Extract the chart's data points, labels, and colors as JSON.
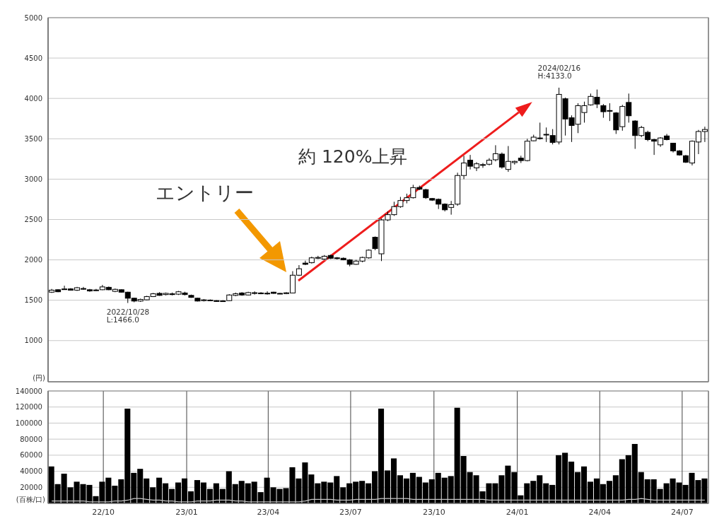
{
  "chart_data": [
    {
      "type": "candlestick",
      "ylabel": "(円)",
      "color": "#000000",
      "x": [
        "2022-08-05",
        "2022-08-12",
        "2022-08-19",
        "2022-08-26",
        "2022-09-02",
        "2022-09-09",
        "2022-09-16",
        "2022-09-23",
        "2022-09-30",
        "2022-10-07",
        "2022-10-14",
        "2022-10-21",
        "2022-10-28",
        "2022-11-04",
        "2022-11-11",
        "2022-11-18",
        "2022-11-25",
        "2022-12-02",
        "2022-12-09",
        "2022-12-16",
        "2022-12-23",
        "2022-12-30",
        "2023-01-06",
        "2023-01-13",
        "2023-01-20",
        "2023-01-27",
        "2023-02-03",
        "2023-02-10",
        "2023-02-17",
        "2023-02-24",
        "2023-03-03",
        "2023-03-10",
        "2023-03-17",
        "2023-03-24",
        "2023-03-31",
        "2023-04-07",
        "2023-04-14",
        "2023-04-21",
        "2023-04-28",
        "2023-05-05",
        "2023-05-12",
        "2023-05-19",
        "2023-05-26",
        "2023-06-02",
        "2023-06-09",
        "2023-06-16",
        "2023-06-23",
        "2023-06-30",
        "2023-07-07",
        "2023-07-14",
        "2023-07-21",
        "2023-07-28",
        "2023-08-04",
        "2023-08-11",
        "2023-08-18",
        "2023-08-25",
        "2023-09-01",
        "2023-09-08",
        "2023-09-15",
        "2023-09-22",
        "2023-09-29",
        "2023-10-06",
        "2023-10-13",
        "2023-10-20",
        "2023-10-27",
        "2023-11-03",
        "2023-11-10",
        "2023-11-17",
        "2023-11-24",
        "2023-12-01",
        "2023-12-08",
        "2023-12-15",
        "2023-12-22",
        "2023-12-29",
        "2024-01-05",
        "2024-01-12",
        "2024-01-19",
        "2024-01-26",
        "2024-02-02",
        "2024-02-09",
        "2024-02-16",
        "2024-02-23",
        "2024-03-01",
        "2024-03-08",
        "2024-03-15",
        "2024-03-22",
        "2024-03-29",
        "2024-04-05",
        "2024-04-12",
        "2024-04-19",
        "2024-04-26",
        "2024-05-03",
        "2024-05-10",
        "2024-05-17",
        "2024-05-24",
        "2024-05-31",
        "2024-06-07",
        "2024-06-14",
        "2024-06-21",
        "2024-06-28",
        "2024-07-05",
        "2024-07-12",
        "2024-07-19",
        "2024-07-26"
      ],
      "ohlc": [
        [
          1600,
          1640,
          1590,
          1625
        ],
        [
          1630,
          1635,
          1600,
          1605
        ],
        [
          1635,
          1680,
          1630,
          1640
        ],
        [
          1640,
          1650,
          1620,
          1625
        ],
        [
          1625,
          1665,
          1615,
          1655
        ],
        [
          1640,
          1665,
          1630,
          1645
        ],
        [
          1630,
          1640,
          1605,
          1615
        ],
        [
          1622,
          1640,
          1615,
          1627
        ],
        [
          1630,
          1690,
          1625,
          1665
        ],
        [
          1660,
          1670,
          1625,
          1630
        ],
        [
          1610,
          1645,
          1600,
          1635
        ],
        [
          1630,
          1635,
          1595,
          1600
        ],
        [
          1600,
          1605,
          1466,
          1525
        ],
        [
          1525,
          1530,
          1475,
          1490
        ],
        [
          1490,
          1520,
          1480,
          1510
        ],
        [
          1505,
          1555,
          1500,
          1545
        ],
        [
          1545,
          1590,
          1540,
          1580
        ],
        [
          1585,
          1600,
          1555,
          1560
        ],
        [
          1570,
          1595,
          1560,
          1585
        ],
        [
          1580,
          1595,
          1560,
          1570
        ],
        [
          1575,
          1615,
          1565,
          1605
        ],
        [
          1590,
          1605,
          1560,
          1570
        ],
        [
          1560,
          1570,
          1530,
          1535
        ],
        [
          1525,
          1530,
          1485,
          1490
        ],
        [
          1495,
          1515,
          1485,
          1505
        ],
        [
          1498,
          1510,
          1490,
          1502
        ],
        [
          1495,
          1500,
          1480,
          1485
        ],
        [
          1488,
          1500,
          1480,
          1492
        ],
        [
          1495,
          1575,
          1490,
          1565
        ],
        [
          1560,
          1595,
          1550,
          1580
        ],
        [
          1590,
          1600,
          1555,
          1565
        ],
        [
          1565,
          1605,
          1560,
          1595
        ],
        [
          1590,
          1610,
          1570,
          1593
        ],
        [
          1590,
          1600,
          1575,
          1580
        ],
        [
          1583,
          1610,
          1570,
          1587
        ],
        [
          1600,
          1605,
          1580,
          1585
        ],
        [
          1585,
          1590,
          1575,
          1580
        ],
        [
          1582,
          1600,
          1575,
          1592
        ],
        [
          1590,
          1860,
          1585,
          1810
        ],
        [
          1810,
          1935,
          1800,
          1890
        ],
        [
          1960,
          1990,
          1935,
          1945
        ],
        [
          1965,
          2040,
          1955,
          2025
        ],
        [
          2020,
          2050,
          2010,
          2030
        ],
        [
          2010,
          2060,
          2000,
          2045
        ],
        [
          2055,
          2065,
          2010,
          2020
        ],
        [
          2025,
          2035,
          2005,
          2020
        ],
        [
          2020,
          2030,
          1995,
          2000
        ],
        [
          2000,
          2010,
          1920,
          1945
        ],
        [
          1945,
          2000,
          1940,
          1985
        ],
        [
          1985,
          2040,
          1970,
          2030
        ],
        [
          2025,
          2130,
          2015,
          2120
        ],
        [
          2280,
          2290,
          2120,
          2140
        ],
        [
          2075,
          2510,
          1985,
          2495
        ],
        [
          2495,
          2600,
          2480,
          2560
        ],
        [
          2560,
          2720,
          2545,
          2660
        ],
        [
          2660,
          2780,
          2645,
          2735
        ],
        [
          2735,
          2820,
          2700,
          2770
        ],
        [
          2770,
          2930,
          2760,
          2895
        ],
        [
          2897,
          2920,
          2865,
          2875
        ],
        [
          2870,
          2880,
          2755,
          2770
        ],
        [
          2760,
          2765,
          2730,
          2740
        ],
        [
          2750,
          2760,
          2630,
          2690
        ],
        [
          2690,
          2700,
          2600,
          2620
        ],
        [
          2650,
          2730,
          2560,
          2685
        ],
        [
          2690,
          3080,
          2670,
          3045
        ],
        [
          3045,
          3290,
          3000,
          3200
        ],
        [
          3235,
          3300,
          3120,
          3160
        ],
        [
          3140,
          3210,
          3100,
          3190
        ],
        [
          3175,
          3200,
          3140,
          3180
        ],
        [
          3185,
          3260,
          3170,
          3235
        ],
        [
          3240,
          3420,
          3220,
          3315
        ],
        [
          3310,
          3330,
          3130,
          3150
        ],
        [
          3120,
          3410,
          3090,
          3220
        ],
        [
          3205,
          3230,
          3180,
          3220
        ],
        [
          3260,
          3290,
          3200,
          3230
        ],
        [
          3230,
          3500,
          3220,
          3470
        ],
        [
          3475,
          3550,
          3470,
          3520
        ],
        [
          3505,
          3700,
          3490,
          3510
        ],
        [
          3550,
          3640,
          3460,
          3555
        ],
        [
          3540,
          3620,
          3430,
          3455
        ],
        [
          3460,
          4133,
          3430,
          4050
        ],
        [
          3995,
          4010,
          3540,
          3745
        ],
        [
          3760,
          3790,
          3460,
          3665
        ],
        [
          3680,
          3940,
          3570,
          3910
        ],
        [
          3825,
          3960,
          3700,
          3910
        ],
        [
          3920,
          4060,
          3910,
          4025
        ],
        [
          4015,
          4110,
          3880,
          3930
        ],
        [
          3910,
          3930,
          3760,
          3835
        ],
        [
          3850,
          3940,
          3720,
          3845
        ],
        [
          3820,
          3830,
          3560,
          3610
        ],
        [
          3650,
          3920,
          3600,
          3900
        ],
        [
          3950,
          4060,
          3700,
          3785
        ],
        [
          3720,
          3730,
          3375,
          3540
        ],
        [
          3540,
          3660,
          3520,
          3640
        ],
        [
          3580,
          3600,
          3470,
          3490
        ],
        [
          3490,
          3500,
          3300,
          3470
        ],
        [
          3425,
          3520,
          3400,
          3510
        ],
        [
          3535,
          3560,
          3480,
          3490
        ],
        [
          3445,
          3450,
          3330,
          3350
        ],
        [
          3350,
          3360,
          3290,
          3300
        ],
        [
          3290,
          3300,
          3200,
          3210
        ],
        [
          3200,
          3480,
          3170,
          3470
        ],
        [
          3460,
          3610,
          3310,
          3590
        ],
        [
          3590,
          3650,
          3460,
          3615
        ]
      ],
      "xlim": [
        "2022-08-01",
        "2024-07-30"
      ],
      "xticks": [
        {
          "value": "2022-10-01",
          "label": null
        },
        {
          "value": "2023-01-01",
          "label": null
        },
        {
          "value": "2023-04-01",
          "label": null
        },
        {
          "value": "2023-07-01",
          "label": null
        },
        {
          "value": "2023-10-01",
          "label": null
        },
        {
          "value": "2024-01-01",
          "label": null
        },
        {
          "value": "2024-04-01",
          "label": null
        },
        {
          "value": "2024-07-01",
          "label": null
        }
      ],
      "ylim": [
        490,
        5000
      ],
      "yticks": [
        1000,
        1500,
        2000,
        2500,
        3000,
        3500,
        4000,
        4500,
        5000
      ],
      "grid": true,
      "tick_labels": "y",
      "annotations": [
        {
          "text": "2022/10/28\nL:1466.0",
          "x": "2022-10-28",
          "y": 1466
        },
        {
          "text": "2024/02/16\nH:4133.0",
          "x": "2024-02-16",
          "y": 4133
        },
        "エントリー",
        "約 120%上昇"
      ]
    },
    {
      "type": "bar",
      "ylabel": "(百株/口)",
      "x": [
        "2022-08-05",
        "2022-08-12",
        "2022-08-19",
        "2022-08-26",
        "2022-09-02",
        "2022-09-09",
        "2022-09-16",
        "2022-09-23",
        "2022-09-30",
        "2022-10-07",
        "2022-10-14",
        "2022-10-21",
        "2022-10-28",
        "2022-11-04",
        "2022-11-11",
        "2022-11-18",
        "2022-11-25",
        "2022-12-02",
        "2022-12-09",
        "2022-12-16",
        "2022-12-23",
        "2022-12-30",
        "2023-01-06",
        "2023-01-13",
        "2023-01-20",
        "2023-01-27",
        "2023-02-03",
        "2023-02-10",
        "2023-02-17",
        "2023-02-24",
        "2023-03-03",
        "2023-03-10",
        "2023-03-17",
        "2023-03-24",
        "2023-03-31",
        "2023-04-07",
        "2023-04-14",
        "2023-04-21",
        "2023-04-28",
        "2023-05-05",
        "2023-05-12",
        "2023-05-19",
        "2023-05-26",
        "2023-06-02",
        "2023-06-09",
        "2023-06-16",
        "2023-06-23",
        "2023-06-30",
        "2023-07-07",
        "2023-07-14",
        "2023-07-21",
        "2023-07-28",
        "2023-08-04",
        "2023-08-11",
        "2023-08-18",
        "2023-08-25",
        "2023-09-01",
        "2023-09-08",
        "2023-09-15",
        "2023-09-22",
        "2023-09-29",
        "2023-10-06",
        "2023-10-13",
        "2023-10-20",
        "2023-10-27",
        "2023-11-03",
        "2023-11-10",
        "2023-11-17",
        "2023-11-24",
        "2023-12-01",
        "2023-12-08",
        "2023-12-15",
        "2023-12-22",
        "2023-12-29",
        "2024-01-05",
        "2024-01-12",
        "2024-01-19",
        "2024-01-26",
        "2024-02-02",
        "2024-02-09",
        "2024-02-16",
        "2024-02-23",
        "2024-03-01",
        "2024-03-08",
        "2024-03-15",
        "2024-03-22",
        "2024-03-29",
        "2024-04-05",
        "2024-04-12",
        "2024-04-19",
        "2024-04-26",
        "2024-05-03",
        "2024-05-10",
        "2024-05-17",
        "2024-05-24",
        "2024-05-31",
        "2024-06-07",
        "2024-06-14",
        "2024-06-21",
        "2024-06-28",
        "2024-07-05",
        "2024-07-12",
        "2024-07-19",
        "2024-07-26"
      ],
      "series": [
        {
          "type": "bar",
          "color": "#000000",
          "values": [
            46000,
            24000,
            37000,
            20000,
            27000,
            24000,
            23000,
            9000,
            27000,
            32000,
            22000,
            30000,
            118000,
            38000,
            43000,
            31000,
            20000,
            32000,
            25000,
            18000,
            26000,
            31000,
            15000,
            29000,
            26000,
            18000,
            25000,
            18000,
            40000,
            24000,
            28000,
            25000,
            27000,
            14000,
            32000,
            20000,
            18000,
            19000,
            45000,
            31000,
            51000,
            36000,
            25000,
            27000,
            26000,
            34000,
            20000,
            25000,
            27000,
            28000,
            25000,
            40000,
            118000,
            41000,
            56000,
            35000,
            31000,
            38000,
            33000,
            26000,
            30000,
            38000,
            32000,
            34000,
            119000,
            59000,
            39000,
            35000,
            15000,
            25000,
            25000,
            35000,
            47000,
            39000,
            10000,
            25000,
            28000,
            35000,
            25000,
            23000,
            60000,
            63000,
            52000,
            39000,
            46000,
            27000,
            31000,
            24000,
            28000,
            35000,
            55000,
            60000,
            74000,
            39000,
            30000,
            30000,
            18000,
            25000,
            31000,
            26000,
            23000,
            38000,
            29000,
            31000
          ]
        },
        {
          "type": "line",
          "color": "#c8c8c8",
          "values": [
            3000,
            3000,
            3000,
            3000,
            3000,
            3000,
            2000,
            2000,
            2000,
            2000,
            3000,
            3000,
            4000,
            6000,
            6000,
            5000,
            4000,
            4000,
            3000,
            3000,
            2000,
            2000,
            2000,
            3000,
            3000,
            3000,
            4000,
            4000,
            4000,
            3000,
            3000,
            2000,
            2000,
            2000,
            2000,
            2000,
            2000,
            2000,
            2000,
            2000,
            3000,
            5000,
            5000,
            5000,
            5000,
            4000,
            4000,
            4000,
            5000,
            5000,
            5000,
            5000,
            6000,
            6000,
            6000,
            6000,
            6000,
            5000,
            5000,
            5000,
            5000,
            5000,
            5000,
            5000,
            5000,
            5000,
            5000,
            5000,
            5000,
            4000,
            4000,
            4000,
            4000,
            4000,
            4000,
            4000,
            4000,
            4000,
            4000,
            4000,
            4000,
            4000,
            4000,
            4000,
            4000,
            4000,
            4000,
            4000,
            4000,
            4000,
            4000,
            5000,
            5000,
            6000,
            5000,
            4000,
            4000,
            4000,
            4000,
            4000,
            4000,
            4000,
            4000,
            4000
          ]
        }
      ],
      "xlim": [
        "2022-08-01",
        "2024-07-30"
      ],
      "xticks": [
        {
          "value": "2022-10-01",
          "label": "22/10"
        },
        {
          "value": "2023-01-01",
          "label": "23/01"
        },
        {
          "value": "2023-04-01",
          "label": "23/04"
        },
        {
          "value": "2023-07-01",
          "label": "23/07"
        },
        {
          "value": "2023-10-01",
          "label": "23/10"
        },
        {
          "value": "2024-01-01",
          "label": "24/01"
        },
        {
          "value": "2024-04-01",
          "label": "24/04"
        },
        {
          "value": "2024-07-01",
          "label": "24/07"
        }
      ],
      "ylim": [
        0,
        140000
      ],
      "yticks": [
        20000,
        40000,
        60000,
        80000,
        100000,
        120000,
        140000
      ],
      "grid": true
    }
  ]
}
